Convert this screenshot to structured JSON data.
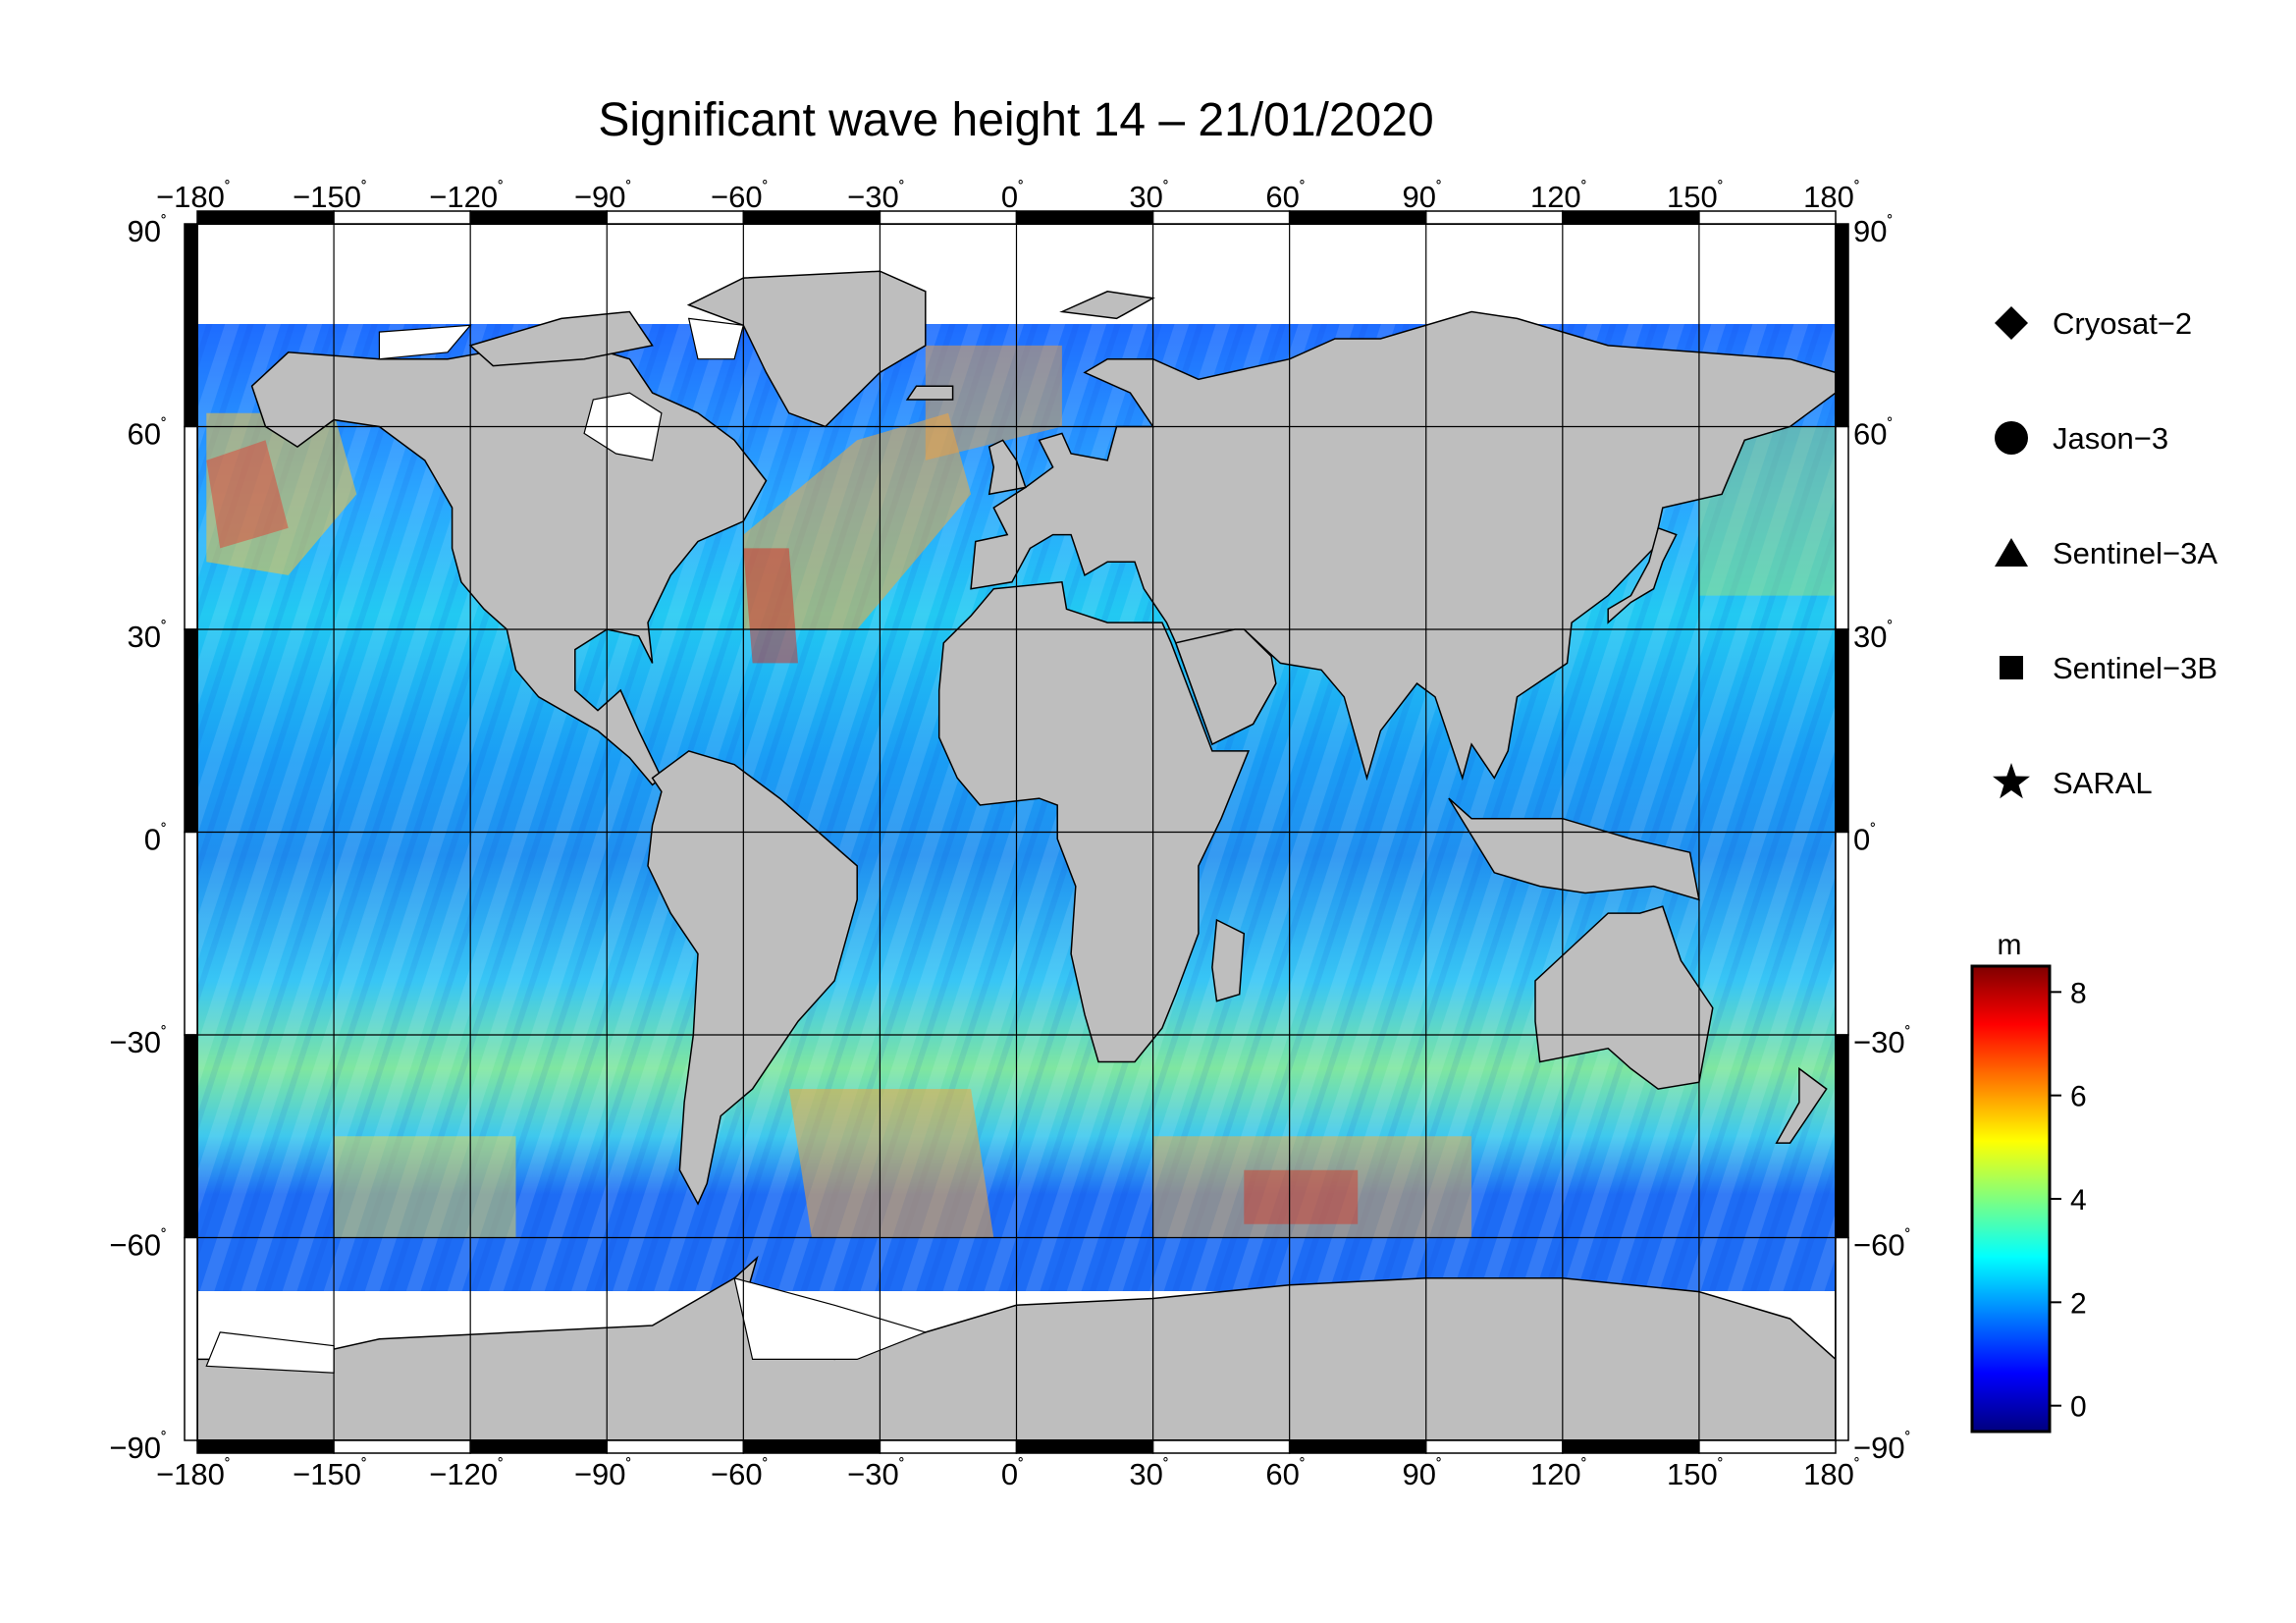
{
  "title": "Significant wave height 14 – 21/01/2020",
  "map": {
    "lon_ticks": [
      "−180",
      "−150",
      "−120",
      "−90",
      "−60",
      "−30",
      "0",
      "30",
      "60",
      "90",
      "120",
      "150",
      "180"
    ],
    "lat_ticks": [
      "90",
      "60",
      "30",
      "0",
      "−30",
      "−60",
      "−90"
    ],
    "degree_symbol": "˚",
    "lon_range": [
      -180,
      180
    ],
    "lat_range": [
      -90,
      90
    ],
    "grid_step_lon": 30,
    "grid_step_lat": 30,
    "projection": "equirectangular",
    "land_color": "#bebebe",
    "ice_color": "#ffffff"
  },
  "legend": {
    "items": [
      {
        "label": "Cryosat−2",
        "symbol": "diamond-icon"
      },
      {
        "label": "Jason−3",
        "symbol": "circle-icon"
      },
      {
        "label": "Sentinel−3A",
        "symbol": "triangle-icon"
      },
      {
        "label": "Sentinel−3B",
        "symbol": "square-icon"
      },
      {
        "label": "SARAL",
        "symbol": "star-icon"
      }
    ]
  },
  "colorbar": {
    "unit": "m",
    "ticks": [
      "8",
      "6",
      "4",
      "2",
      "0"
    ],
    "range": [
      -0.5,
      8.5
    ],
    "colors": [
      "#00007f",
      "#0000ff",
      "#007fff",
      "#00ffff",
      "#7fff7f",
      "#ffff00",
      "#ff7f00",
      "#ff0000",
      "#7f0000"
    ]
  }
}
